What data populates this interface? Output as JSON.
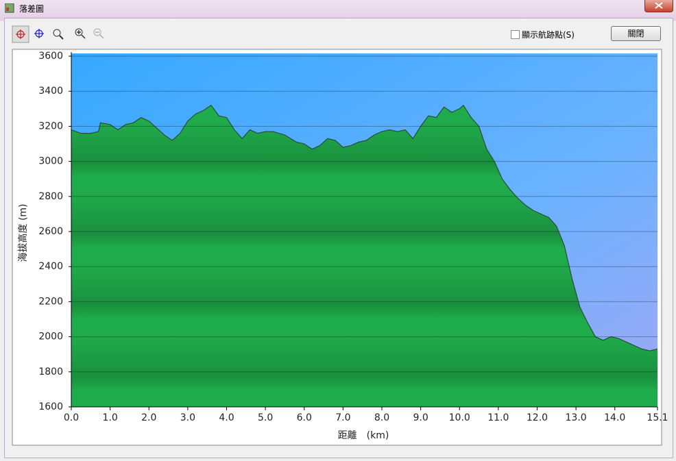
{
  "window": {
    "title": "落差圖"
  },
  "toolbar": {
    "checkbox_label": "顯示航跡點(S)",
    "close_button": "關閉"
  },
  "chart_data": {
    "type": "area",
    "xlabel": "距離　(km)",
    "ylabel": "海拔高度 (m)",
    "color": "#1fa84a",
    "grid": true,
    "x": [
      0,
      0.25,
      0.5,
      0.7,
      0.75,
      1.0,
      1.2,
      1.4,
      1.6,
      1.8,
      2.0,
      2.2,
      2.4,
      2.6,
      2.8,
      3.0,
      3.2,
      3.4,
      3.6,
      3.8,
      4.0,
      4.2,
      4.4,
      4.6,
      4.8,
      5.0,
      5.2,
      5.5,
      5.8,
      6.0,
      6.2,
      6.4,
      6.6,
      6.8,
      7.0,
      7.2,
      7.4,
      7.6,
      7.8,
      8.0,
      8.2,
      8.4,
      8.6,
      8.8,
      9.0,
      9.2,
      9.4,
      9.6,
      9.8,
      10.0,
      10.1,
      10.3,
      10.5,
      10.7,
      10.9,
      11.1,
      11.3,
      11.5,
      11.7,
      11.9,
      12.1,
      12.3,
      12.5,
      12.7,
      12.9,
      13.1,
      13.3,
      13.5,
      13.7,
      13.9,
      14.1,
      14.3,
      14.5,
      14.7,
      14.9,
      15.1
    ],
    "values": [
      3180,
      3160,
      3160,
      3170,
      3220,
      3210,
      3180,
      3210,
      3220,
      3250,
      3230,
      3190,
      3150,
      3120,
      3160,
      3230,
      3270,
      3290,
      3320,
      3260,
      3250,
      3180,
      3130,
      3180,
      3160,
      3170,
      3170,
      3150,
      3110,
      3100,
      3070,
      3090,
      3130,
      3120,
      3080,
      3090,
      3110,
      3120,
      3150,
      3170,
      3180,
      3170,
      3180,
      3130,
      3200,
      3260,
      3250,
      3310,
      3280,
      3300,
      3320,
      3250,
      3200,
      3070,
      3000,
      2900,
      2840,
      2790,
      2750,
      2720,
      2700,
      2680,
      2630,
      2520,
      2330,
      2170,
      2080,
      2000,
      1980,
      2000,
      1990,
      1970,
      1950,
      1930,
      1920,
      1930
    ],
    "xlim": [
      0,
      15.1
    ],
    "ylim": [
      1600,
      3600
    ],
    "xticks": [
      {
        "value": 0,
        "label": "0.0"
      },
      {
        "value": 1,
        "label": "1.0"
      },
      {
        "value": 2,
        "label": "2.0"
      },
      {
        "value": 3,
        "label": "3.0"
      },
      {
        "value": 4,
        "label": "4.0"
      },
      {
        "value": 5,
        "label": "5.0"
      },
      {
        "value": 6,
        "label": "6.0"
      },
      {
        "value": 7,
        "label": "7.0"
      },
      {
        "value": 8,
        "label": "8.0"
      },
      {
        "value": 9,
        "label": "9.0"
      },
      {
        "value": 10,
        "label": "10.0"
      },
      {
        "value": 11,
        "label": "11.0"
      },
      {
        "value": 12,
        "label": "12.0"
      },
      {
        "value": 13,
        "label": "13.0"
      },
      {
        "value": 14,
        "label": "14.0"
      },
      15.1
    ],
    "yticks": [
      1600,
      1800,
      2000,
      2200,
      2400,
      2600,
      2800,
      3000,
      3200,
      3400,
      3600
    ]
  }
}
